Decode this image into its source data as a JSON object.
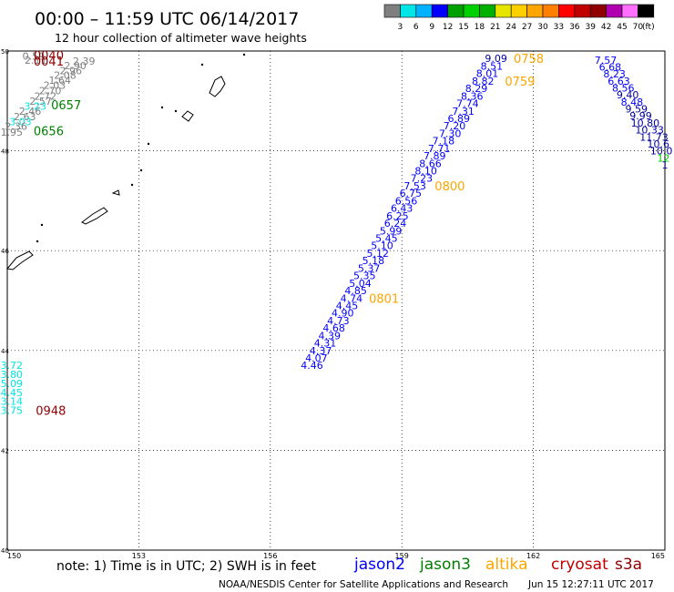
{
  "header": {
    "title": "00:00 – 11:59 UTC 06/14/2017",
    "subtitle": "12 hour collection of altimeter wave heights"
  },
  "colorbar": {
    "unit": "(ft)",
    "bins": [
      {
        "label": "",
        "color": "#7f7f7f"
      },
      {
        "label": "3",
        "color": "#00e5e5"
      },
      {
        "label": "6",
        "color": "#00b2ff"
      },
      {
        "label": "9",
        "color": "#0000ff"
      },
      {
        "label": "12",
        "color": "#00a000"
      },
      {
        "label": "15",
        "color": "#00d000"
      },
      {
        "label": "18",
        "color": "#00b000"
      },
      {
        "label": "21",
        "color": "#e5e500"
      },
      {
        "label": "24",
        "color": "#ffd000"
      },
      {
        "label": "27",
        "color": "#ffa500"
      },
      {
        "label": "30",
        "color": "#ff7f00"
      },
      {
        "label": "33",
        "color": "#ff0000"
      },
      {
        "label": "36",
        "color": "#c00000"
      },
      {
        "label": "39",
        "color": "#900000"
      },
      {
        "label": "42",
        "color": "#b000b0"
      },
      {
        "label": "45",
        "color": "#ff70ff"
      },
      {
        "label": "70",
        "color": "#000000"
      }
    ]
  },
  "map": {
    "lon_min": 150,
    "lon_max": 165,
    "lat_min": 40,
    "lat_max": 50,
    "lon_ticks": [
      "150",
      "153",
      "156",
      "159",
      "162",
      "165"
    ],
    "lat_ticks": [
      "50",
      "48",
      "46",
      "44",
      "42",
      "40"
    ]
  },
  "colors": {
    "gray": "#7f7f7f",
    "cyan": "#00e5e5",
    "blue": "#0000ff",
    "navy": "#0000a0",
    "green": "#008000",
    "lime": "#00d000",
    "orange": "#ffa500",
    "darkred": "#900000"
  },
  "tracks": [
    {
      "name": "track-nw-gray",
      "points": [
        {
          "lon": 150.6,
          "lat": 49.9,
          "v": "0.59",
          "c": "gray"
        },
        {
          "lon": 150.65,
          "lat": 49.82,
          "v": "2.11",
          "c": "gray"
        },
        {
          "lon": 151.75,
          "lat": 49.8,
          "v": "2.39",
          "c": "gray"
        },
        {
          "lon": 151.55,
          "lat": 49.71,
          "v": "2.90",
          "c": "gray"
        },
        {
          "lon": 151.45,
          "lat": 49.61,
          "v": "2.96",
          "c": "gray"
        },
        {
          "lon": 151.32,
          "lat": 49.52,
          "v": "2.08",
          "c": "gray"
        },
        {
          "lon": 151.2,
          "lat": 49.42,
          "v": "1.64",
          "c": "gray"
        },
        {
          "lon": 151.08,
          "lat": 49.32,
          "v": "2.03",
          "c": "gray"
        },
        {
          "lon": 150.98,
          "lat": 49.21,
          "v": "2.70",
          "c": "gray"
        },
        {
          "lon": 150.87,
          "lat": 49.1,
          "v": "2.72",
          "c": "gray"
        },
        {
          "lon": 150.76,
          "lat": 49.0,
          "v": "2.57",
          "c": "gray"
        },
        {
          "lon": 150.64,
          "lat": 48.9,
          "v": "3.23",
          "c": "cyan"
        },
        {
          "lon": 150.52,
          "lat": 48.8,
          "v": "2.46",
          "c": "gray"
        },
        {
          "lon": 150.4,
          "lat": 48.69,
          "v": "2.63",
          "c": "gray"
        },
        {
          "lon": 150.3,
          "lat": 48.59,
          "v": "3.03",
          "c": "cyan"
        },
        {
          "lon": 150.2,
          "lat": 48.49,
          "v": "2.36",
          "c": "gray"
        },
        {
          "lon": 150.1,
          "lat": 48.38,
          "v": "1.95",
          "c": "gray"
        }
      ]
    },
    {
      "name": "track-main-jason",
      "points": [
        {
          "lon": 161.15,
          "lat": 49.85,
          "v": "9.09",
          "c": "navy"
        },
        {
          "lon": 161.05,
          "lat": 49.7,
          "v": "8.51",
          "c": "blue"
        },
        {
          "lon": 160.95,
          "lat": 49.55,
          "v": "8.01",
          "c": "blue"
        },
        {
          "lon": 160.85,
          "lat": 49.4,
          "v": "8.82",
          "c": "blue"
        },
        {
          "lon": 160.7,
          "lat": 49.25,
          "v": "8.29",
          "c": "blue"
        },
        {
          "lon": 160.6,
          "lat": 49.1,
          "v": "8.36",
          "c": "blue"
        },
        {
          "lon": 160.5,
          "lat": 48.95,
          "v": "7.74",
          "c": "blue"
        },
        {
          "lon": 160.4,
          "lat": 48.8,
          "v": "7.31",
          "c": "blue"
        },
        {
          "lon": 160.3,
          "lat": 48.65,
          "v": "6.89",
          "c": "blue"
        },
        {
          "lon": 160.2,
          "lat": 48.5,
          "v": "7.20",
          "c": "blue"
        },
        {
          "lon": 160.1,
          "lat": 48.35,
          "v": "7.30",
          "c": "blue"
        },
        {
          "lon": 159.95,
          "lat": 48.2,
          "v": "7.18",
          "c": "blue"
        },
        {
          "lon": 159.85,
          "lat": 48.05,
          "v": "7.71",
          "c": "blue"
        },
        {
          "lon": 159.75,
          "lat": 47.9,
          "v": "7.89",
          "c": "blue"
        },
        {
          "lon": 159.65,
          "lat": 47.75,
          "v": "8.66",
          "c": "blue"
        },
        {
          "lon": 159.55,
          "lat": 47.6,
          "v": "8.10",
          "c": "blue"
        },
        {
          "lon": 159.45,
          "lat": 47.45,
          "v": "7.23",
          "c": "blue"
        },
        {
          "lon": 159.3,
          "lat": 47.3,
          "v": "7.53",
          "c": "blue"
        },
        {
          "lon": 159.2,
          "lat": 47.15,
          "v": "6.75",
          "c": "blue"
        },
        {
          "lon": 159.1,
          "lat": 47.0,
          "v": "6.56",
          "c": "blue"
        },
        {
          "lon": 159.0,
          "lat": 46.85,
          "v": "6.43",
          "c": "blue"
        },
        {
          "lon": 158.9,
          "lat": 46.7,
          "v": "6.25",
          "c": "blue"
        },
        {
          "lon": 158.85,
          "lat": 46.55,
          "v": "6.24",
          "c": "blue"
        },
        {
          "lon": 158.75,
          "lat": 46.4,
          "v": "5.99",
          "c": "blue"
        },
        {
          "lon": 158.65,
          "lat": 46.25,
          "v": "5.45",
          "c": "blue"
        },
        {
          "lon": 158.55,
          "lat": 46.1,
          "v": "5.10",
          "c": "blue"
        },
        {
          "lon": 158.45,
          "lat": 45.95,
          "v": "5.12",
          "c": "blue"
        },
        {
          "lon": 158.35,
          "lat": 45.8,
          "v": "5.18",
          "c": "blue"
        },
        {
          "lon": 158.25,
          "lat": 45.65,
          "v": "5.37",
          "c": "blue"
        },
        {
          "lon": 158.15,
          "lat": 45.5,
          "v": "5.35",
          "c": "blue"
        },
        {
          "lon": 158.05,
          "lat": 45.35,
          "v": "5.04",
          "c": "blue"
        },
        {
          "lon": 157.95,
          "lat": 45.2,
          "v": "4.85",
          "c": "blue"
        },
        {
          "lon": 157.85,
          "lat": 45.05,
          "v": "4.74",
          "c": "blue"
        },
        {
          "lon": 157.75,
          "lat": 44.9,
          "v": "4.45",
          "c": "blue"
        },
        {
          "lon": 157.65,
          "lat": 44.75,
          "v": "4.90",
          "c": "blue"
        },
        {
          "lon": 157.55,
          "lat": 44.6,
          "v": "4.73",
          "c": "blue"
        },
        {
          "lon": 157.45,
          "lat": 44.45,
          "v": "4.68",
          "c": "blue"
        },
        {
          "lon": 157.35,
          "lat": 44.3,
          "v": "4.39",
          "c": "blue"
        },
        {
          "lon": 157.25,
          "lat": 44.15,
          "v": "4.31",
          "c": "blue"
        },
        {
          "lon": 157.15,
          "lat": 44.0,
          "v": "4.37",
          "c": "blue"
        },
        {
          "lon": 157.05,
          "lat": 43.85,
          "v": "4.07",
          "c": "blue"
        },
        {
          "lon": 156.95,
          "lat": 43.7,
          "v": "4.46",
          "c": "blue"
        }
      ]
    },
    {
      "name": "track-ne-jason",
      "points": [
        {
          "lon": 163.65,
          "lat": 49.82,
          "v": "7.57",
          "c": "blue"
        },
        {
          "lon": 163.75,
          "lat": 49.68,
          "v": "6.68",
          "c": "blue"
        },
        {
          "lon": 163.85,
          "lat": 49.54,
          "v": "8.23",
          "c": "blue"
        },
        {
          "lon": 163.95,
          "lat": 49.4,
          "v": "6.63",
          "c": "blue"
        },
        {
          "lon": 164.05,
          "lat": 49.26,
          "v": "8.56",
          "c": "blue"
        },
        {
          "lon": 164.15,
          "lat": 49.12,
          "v": "9.40",
          "c": "navy"
        },
        {
          "lon": 164.25,
          "lat": 48.98,
          "v": "8.48",
          "c": "blue"
        },
        {
          "lon": 164.35,
          "lat": 48.84,
          "v": "9.59",
          "c": "navy"
        },
        {
          "lon": 164.45,
          "lat": 48.7,
          "v": "9.99",
          "c": "navy"
        },
        {
          "lon": 164.55,
          "lat": 48.56,
          "v": "10.80",
          "c": "navy"
        },
        {
          "lon": 164.65,
          "lat": 48.42,
          "v": "10.33",
          "c": "navy"
        },
        {
          "lon": 164.75,
          "lat": 48.28,
          "v": "11.73",
          "c": "navy"
        },
        {
          "lon": 164.85,
          "lat": 48.14,
          "v": "10.6",
          "c": "navy"
        },
        {
          "lon": 164.92,
          "lat": 48.0,
          "v": "10.0",
          "c": "navy"
        },
        {
          "lon": 164.97,
          "lat": 47.86,
          "v": "12",
          "c": "lime"
        },
        {
          "lon": 165.0,
          "lat": 47.72,
          "v": "1",
          "c": "navy"
        }
      ]
    },
    {
      "name": "track-sw-cyan",
      "points": [
        {
          "lon": 150.1,
          "lat": 43.7,
          "v": "3.72",
          "c": "cyan"
        },
        {
          "lon": 150.1,
          "lat": 43.52,
          "v": "3.80",
          "c": "cyan"
        },
        {
          "lon": 150.1,
          "lat": 43.34,
          "v": "5.09",
          "c": "cyan"
        },
        {
          "lon": 150.1,
          "lat": 43.16,
          "v": "4.45",
          "c": "cyan"
        },
        {
          "lon": 150.1,
          "lat": 42.98,
          "v": "3.14",
          "c": "cyan"
        },
        {
          "lon": 150.1,
          "lat": 42.8,
          "v": "3.75",
          "c": "cyan"
        }
      ]
    }
  ],
  "time_labels": [
    {
      "lon": 150.6,
      "lat": 49.92,
      "t": "0040",
      "c": "darkred"
    },
    {
      "lon": 150.6,
      "lat": 49.8,
      "t": "0041",
      "c": "darkred"
    },
    {
      "lon": 151.0,
      "lat": 48.92,
      "t": "0657",
      "c": "green"
    },
    {
      "lon": 150.6,
      "lat": 48.4,
      "t": "0656",
      "c": "green"
    },
    {
      "lon": 161.55,
      "lat": 49.85,
      "t": "0758",
      "c": "orange"
    },
    {
      "lon": 161.35,
      "lat": 49.4,
      "t": "0759",
      "c": "orange"
    },
    {
      "lon": 159.75,
      "lat": 47.3,
      "t": "0800",
      "c": "orange"
    },
    {
      "lon": 158.25,
      "lat": 45.05,
      "t": "0801",
      "c": "orange"
    },
    {
      "lon": 150.65,
      "lat": 42.8,
      "t": "0948",
      "c": "darkred"
    }
  ],
  "footer": {
    "note": "note: 1) Time is in UTC; 2) SWH is in feet",
    "legend": [
      {
        "name": "jason2",
        "color": "#0000ff"
      },
      {
        "name": "jason3",
        "color": "#008000"
      },
      {
        "name": "altika",
        "color": "#ffa500"
      },
      {
        "name": "cryosat",
        "color": "#c00000"
      },
      {
        "name": "s3a",
        "color": "#900000"
      }
    ],
    "credit": "NOAA/NESDIS Center for Satellite Applications and Research",
    "timestamp": "Jun 15 12:27:11 UTC 2017"
  }
}
